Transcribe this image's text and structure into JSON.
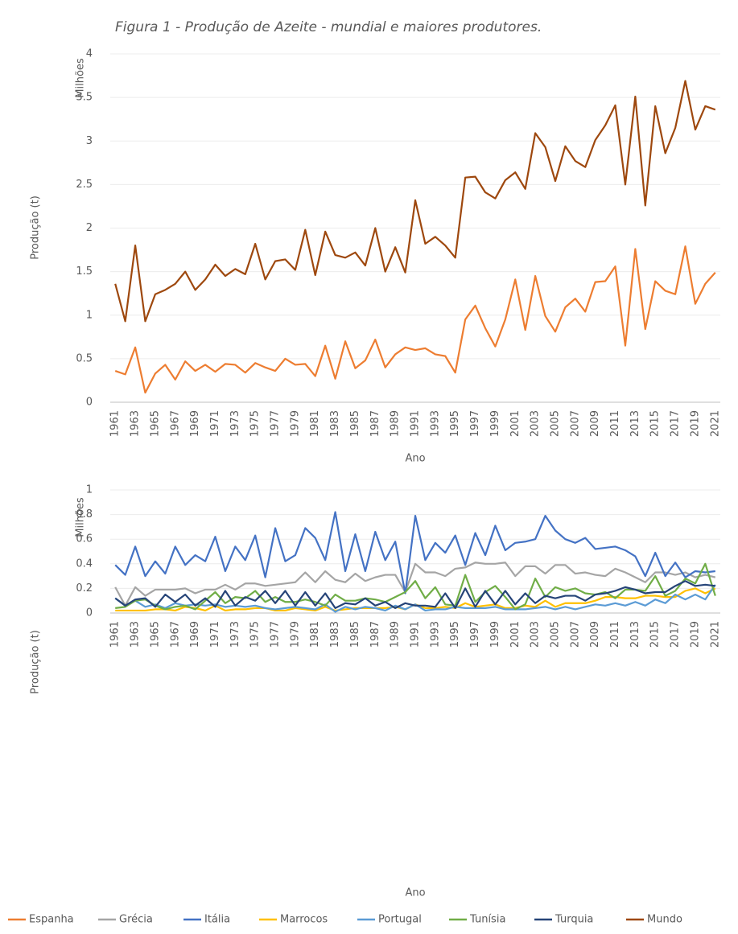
{
  "title": "Figura 1 - Produção de Azeite - mundial e maiores produtores.",
  "chart_data": [
    {
      "type": "line",
      "y_unit_label": "Milhões",
      "y_label": "Produção (t)",
      "x_label": "Ano",
      "categories": [
        "1961",
        null,
        "1963",
        null,
        "1965",
        null,
        "1967",
        null,
        "1969",
        null,
        "1971",
        null,
        "1973",
        null,
        "1975",
        null,
        "1977",
        null,
        "1979",
        null,
        "1981",
        null,
        "1983",
        null,
        "1985",
        null,
        "1987",
        null,
        "1989",
        null,
        "1991",
        null,
        "1993",
        null,
        "1995",
        null,
        "1997",
        null,
        "1999",
        null,
        "2001",
        null,
        "2003",
        null,
        "2005",
        null,
        "2007",
        null,
        "2009",
        null,
        "2011",
        null,
        "2013",
        null,
        "2015",
        null,
        "2017",
        null,
        "2019",
        null,
        "2021"
      ],
      "ylim": [
        0,
        4
      ],
      "yticks": [
        0,
        0.5,
        1,
        1.5,
        2,
        2.5,
        3,
        3.5,
        4
      ],
      "grid": true,
      "series": [
        {
          "name": "Espanha",
          "color": "#ED7D31",
          "values": [
            0.36,
            0.32,
            0.63,
            0.11,
            0.33,
            0.43,
            0.26,
            0.47,
            0.36,
            0.43,
            0.35,
            0.44,
            0.43,
            0.34,
            0.45,
            0.4,
            0.36,
            0.5,
            0.43,
            0.44,
            0.3,
            0.65,
            0.27,
            0.7,
            0.39,
            0.48,
            0.72,
            0.4,
            0.55,
            0.63,
            0.6,
            0.62,
            0.55,
            0.53,
            0.34,
            0.95,
            1.11,
            0.85,
            0.64,
            0.95,
            1.41,
            0.83,
            1.45,
            0.99,
            0.81,
            1.09,
            1.19,
            1.04,
            1.38,
            1.39,
            1.56,
            0.65,
            1.76,
            0.84,
            1.39,
            1.28,
            1.24,
            1.79,
            1.13,
            1.36,
            1.49
          ]
        },
        {
          "name": "Mundo",
          "color": "#9E480E",
          "values": [
            1.36,
            0.93,
            1.8,
            0.93,
            1.24,
            1.29,
            1.36,
            1.5,
            1.29,
            1.41,
            1.58,
            1.45,
            1.53,
            1.47,
            1.82,
            1.41,
            1.62,
            1.64,
            1.52,
            1.98,
            1.46,
            1.96,
            1.69,
            1.66,
            1.72,
            1.57,
            2.0,
            1.5,
            1.78,
            1.49,
            2.32,
            1.82,
            1.9,
            1.8,
            1.66,
            2.58,
            2.59,
            2.41,
            2.34,
            2.55,
            2.64,
            2.45,
            3.09,
            2.93,
            2.54,
            2.94,
            2.77,
            2.7,
            3.01,
            3.18,
            3.41,
            2.5,
            3.51,
            2.26,
            3.4,
            2.86,
            3.15,
            3.69,
            3.13,
            3.4,
            3.36
          ]
        }
      ]
    },
    {
      "type": "line",
      "y_unit_label": "Milhões",
      "y_label": "Produção (t)",
      "x_label": "Ano",
      "categories": [
        "1961",
        null,
        "1963",
        null,
        "1965",
        null,
        "1967",
        null,
        "1969",
        null,
        "1971",
        null,
        "1973",
        null,
        "1975",
        null,
        "1977",
        null,
        "1979",
        null,
        "1981",
        null,
        "1983",
        null,
        "1985",
        null,
        "1987",
        null,
        "1989",
        null,
        "1991",
        null,
        "1993",
        null,
        "1995",
        null,
        "1997",
        null,
        "1999",
        null,
        "2001",
        null,
        "2003",
        null,
        "2005",
        null,
        "2007",
        null,
        "2009",
        null,
        "2011",
        null,
        "2013",
        null,
        "2015",
        null,
        "2017",
        null,
        "2019",
        null,
        "2021"
      ],
      "ylim": [
        0,
        1
      ],
      "yticks": [
        0,
        0.2,
        0.4,
        0.6,
        0.8,
        1
      ],
      "grid": true,
      "series": [
        {
          "name": "Grécia",
          "color": "#A5A5A5",
          "values": [
            0.21,
            0.06,
            0.21,
            0.14,
            0.19,
            0.19,
            0.19,
            0.2,
            0.16,
            0.19,
            0.19,
            0.23,
            0.19,
            0.24,
            0.24,
            0.22,
            0.23,
            0.24,
            0.25,
            0.33,
            0.25,
            0.34,
            0.27,
            0.25,
            0.32,
            0.26,
            0.29,
            0.31,
            0.31,
            0.17,
            0.4,
            0.33,
            0.33,
            0.3,
            0.36,
            0.37,
            0.41,
            0.4,
            0.4,
            0.41,
            0.3,
            0.38,
            0.38,
            0.32,
            0.39,
            0.39,
            0.32,
            0.33,
            0.31,
            0.3,
            0.36,
            0.33,
            0.29,
            0.25,
            0.33,
            0.33,
            0.31,
            0.33,
            0.29,
            0.31,
            0.29
          ]
        },
        {
          "name": "Itália",
          "color": "#4472C4",
          "values": [
            0.39,
            0.31,
            0.54,
            0.3,
            0.42,
            0.32,
            0.54,
            0.39,
            0.47,
            0.42,
            0.62,
            0.34,
            0.54,
            0.43,
            0.63,
            0.29,
            0.69,
            0.42,
            0.47,
            0.69,
            0.61,
            0.43,
            0.82,
            0.34,
            0.64,
            0.34,
            0.66,
            0.43,
            0.58,
            0.16,
            0.79,
            0.43,
            0.57,
            0.49,
            0.63,
            0.39,
            0.65,
            0.47,
            0.71,
            0.51,
            0.57,
            0.58,
            0.6,
            0.79,
            0.67,
            0.6,
            0.57,
            0.61,
            0.52,
            0.53,
            0.54,
            0.51,
            0.46,
            0.3,
            0.49,
            0.3,
            0.41,
            0.29,
            0.34,
            0.33,
            0.34
          ]
        },
        {
          "name": "Marrocos",
          "color": "#FFC000",
          "values": [
            0.02,
            0.02,
            0.02,
            0.02,
            0.03,
            0.03,
            0.02,
            0.05,
            0.04,
            0.02,
            0.06,
            0.02,
            0.03,
            0.03,
            0.04,
            0.04,
            0.02,
            0.02,
            0.04,
            0.03,
            0.02,
            0.05,
            0.02,
            0.03,
            0.04,
            0.04,
            0.04,
            0.04,
            0.05,
            0.03,
            0.07,
            0.04,
            0.04,
            0.05,
            0.04,
            0.08,
            0.05,
            0.06,
            0.07,
            0.04,
            0.04,
            0.06,
            0.05,
            0.1,
            0.05,
            0.08,
            0.08,
            0.08,
            0.1,
            0.13,
            0.13,
            0.12,
            0.12,
            0.14,
            0.14,
            0.13,
            0.13,
            0.18,
            0.2,
            0.16,
            0.2
          ]
        },
        {
          "name": "Portugal",
          "color": "#5B9BD5",
          "values": [
            0.12,
            0.06,
            0.1,
            0.05,
            0.07,
            0.04,
            0.08,
            0.06,
            0.07,
            0.06,
            0.07,
            0.05,
            0.06,
            0.05,
            0.06,
            0.04,
            0.03,
            0.04,
            0.05,
            0.04,
            0.03,
            0.07,
            0.01,
            0.05,
            0.03,
            0.05,
            0.04,
            0.02,
            0.06,
            0.03,
            0.07,
            0.02,
            0.03,
            0.03,
            0.05,
            0.04,
            0.04,
            0.04,
            0.05,
            0.03,
            0.03,
            0.03,
            0.04,
            0.05,
            0.03,
            0.05,
            0.03,
            0.05,
            0.07,
            0.06,
            0.08,
            0.06,
            0.09,
            0.06,
            0.11,
            0.08,
            0.15,
            0.11,
            0.15,
            0.11,
            0.23
          ]
        },
        {
          "name": "Tunísia",
          "color": "#70AD47",
          "values": [
            0.04,
            0.05,
            0.1,
            0.11,
            0.06,
            0.03,
            0.05,
            0.06,
            0.03,
            0.1,
            0.17,
            0.08,
            0.13,
            0.12,
            0.18,
            0.09,
            0.13,
            0.09,
            0.09,
            0.11,
            0.09,
            0.06,
            0.15,
            0.1,
            0.1,
            0.12,
            0.11,
            0.09,
            0.13,
            0.17,
            0.26,
            0.12,
            0.21,
            0.07,
            0.06,
            0.31,
            0.09,
            0.17,
            0.22,
            0.13,
            0.03,
            0.07,
            0.28,
            0.13,
            0.21,
            0.18,
            0.2,
            0.16,
            0.15,
            0.17,
            0.12,
            0.19,
            0.19,
            0.18,
            0.3,
            0.14,
            0.18,
            0.28,
            0.24,
            0.4,
            0.14
          ]
        },
        {
          "name": "Turquia",
          "color": "#264478",
          "values": [
            0.12,
            0.06,
            0.11,
            0.12,
            0.05,
            0.15,
            0.09,
            0.15,
            0.06,
            0.12,
            0.05,
            0.18,
            0.06,
            0.13,
            0.1,
            0.18,
            0.08,
            0.18,
            0.06,
            0.17,
            0.06,
            0.16,
            0.04,
            0.08,
            0.07,
            0.12,
            0.06,
            0.09,
            0.04,
            0.08,
            0.06,
            0.06,
            0.05,
            0.16,
            0.04,
            0.2,
            0.05,
            0.18,
            0.07,
            0.18,
            0.07,
            0.16,
            0.08,
            0.14,
            0.12,
            0.14,
            0.14,
            0.1,
            0.15,
            0.16,
            0.18,
            0.21,
            0.19,
            0.16,
            0.17,
            0.17,
            0.22,
            0.26,
            0.22,
            0.23,
            0.22
          ]
        }
      ]
    }
  ]
}
